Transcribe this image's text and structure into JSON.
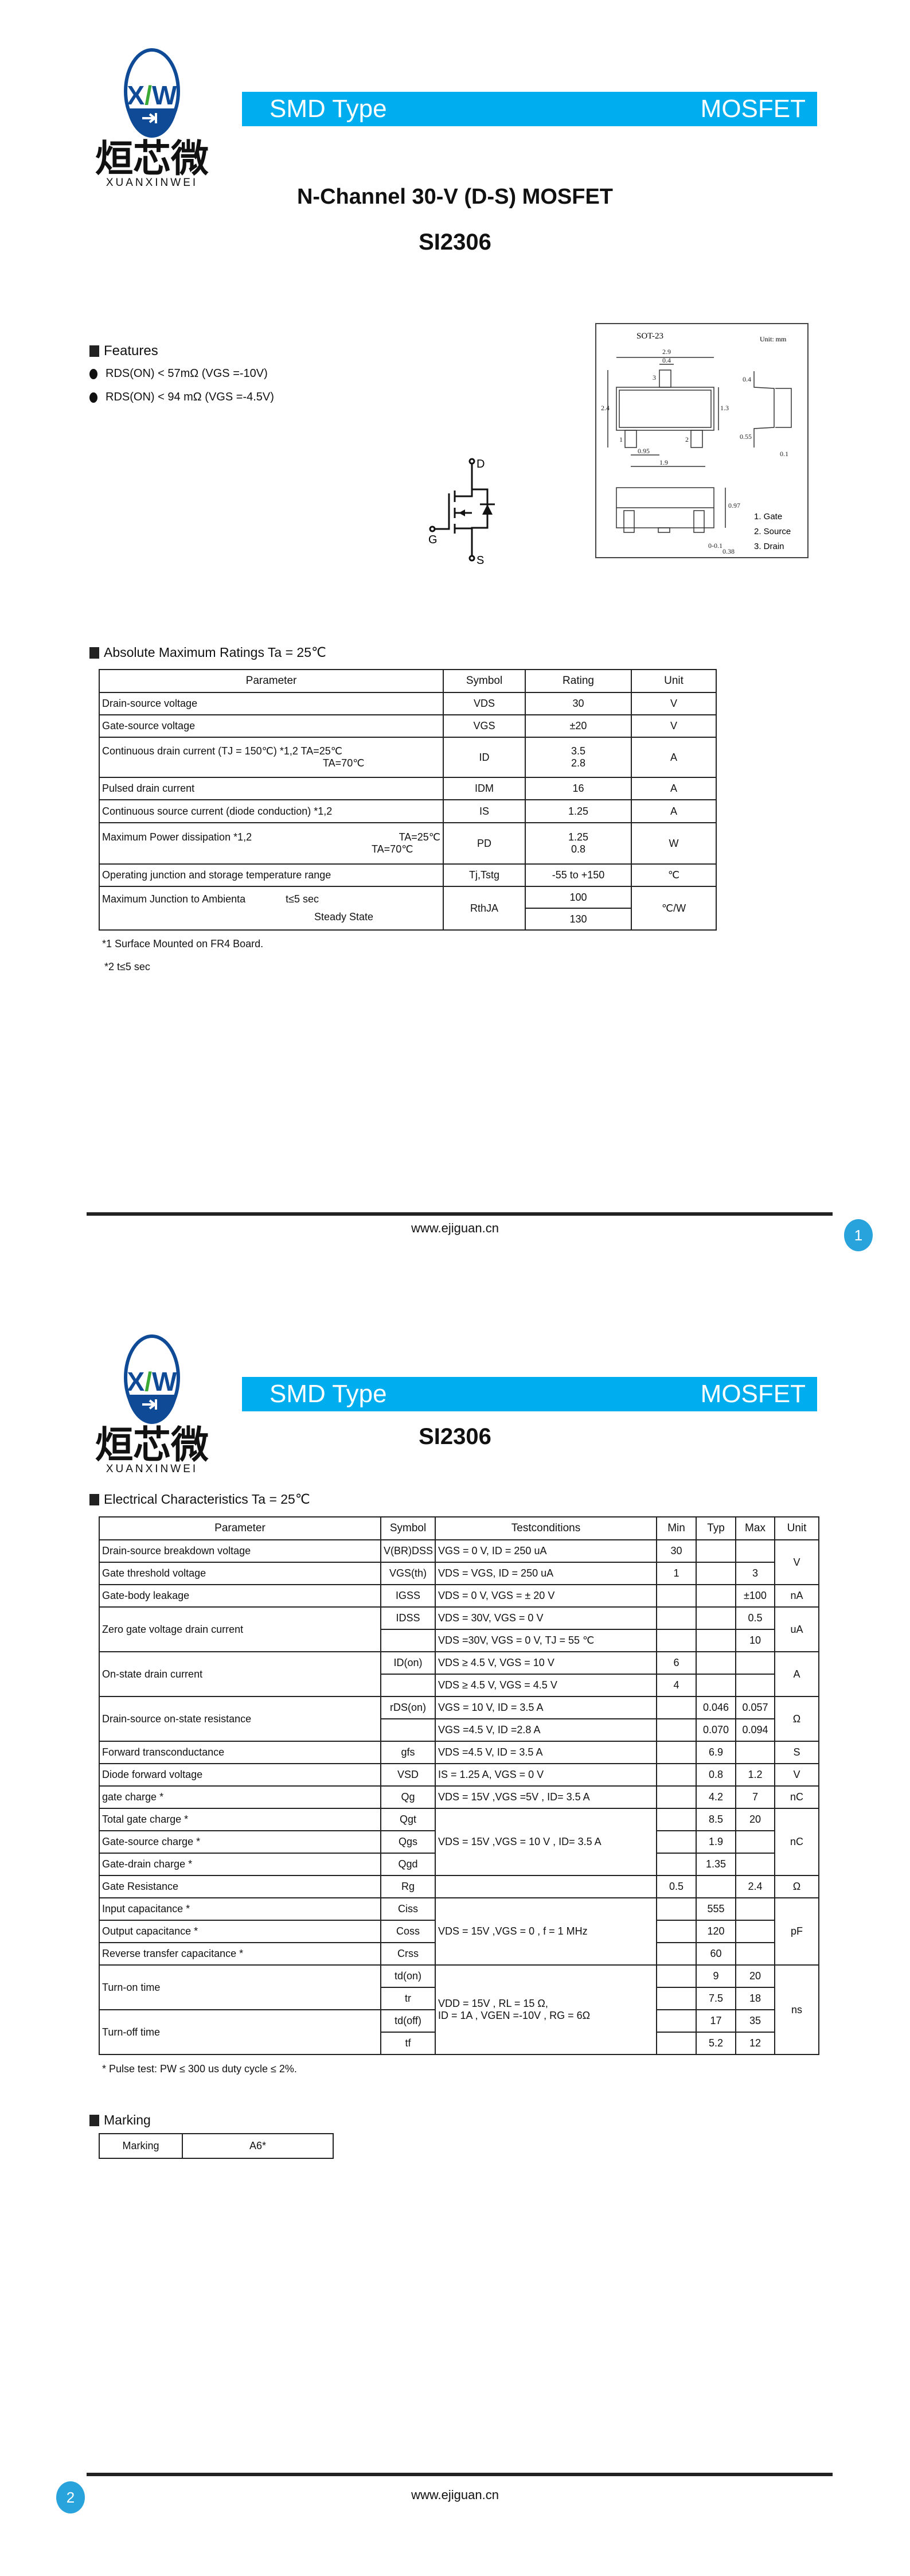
{
  "brand": {
    "logo_letters": "XW",
    "chinese": "烜芯微",
    "pinyin": "XUANXINWEI",
    "logo_blue": "#0e4a96",
    "logo_green": "#3aaa35"
  },
  "header": {
    "left": "SMD Type",
    "right": "MOSFET",
    "bar_color": "#00aeef"
  },
  "page1": {
    "title": "N-Channel 30-V (D-S) MOSFET",
    "part": "SI2306",
    "features": {
      "heading": "Features",
      "items": [
        "RDS(ON) < 57mΩ (VGS =-10V)",
        "RDS(ON) < 94 mΩ  (VGS =-4.5V)"
      ]
    },
    "symbol": {
      "drain": "D",
      "gate": "G",
      "source": "S"
    },
    "package": {
      "name": "SOT-23",
      "unit": "Unit: mm",
      "dims": [
        "2.9",
        "0.4",
        "2.4",
        "1.3",
        "0.95",
        "1.9",
        "0.4",
        "0.55",
        "0.1",
        "0.97",
        "0-0.1",
        "0.38"
      ],
      "pins": [
        "1. Gate",
        "2. Source",
        "3. Drain"
      ],
      "pin_nums": [
        "1",
        "2",
        "3"
      ]
    },
    "abs": {
      "heading": "Absolute Maximum Ratings Ta = 25℃",
      "headers": [
        "Parameter",
        "Symbol",
        "Rating",
        "Unit"
      ],
      "rows": [
        {
          "p": "Drain-source voltage",
          "s": "VDS",
          "r": "30",
          "u": "V"
        },
        {
          "p": "Gate-source voltage",
          "s": "VGS",
          "r": "±20",
          "u": "V"
        },
        {
          "p": "Continuous drain current (TJ = 150℃) *1,2  TA=25℃",
          "p2": "TA=70℃",
          "s": "ID",
          "r": "3.5",
          "r2": "2.8",
          "u": "A"
        },
        {
          "p": "Pulsed drain current",
          "s": "IDM",
          "r": "16",
          "u": "A"
        },
        {
          "p": "Continuous source current (diode conduction) *1,2",
          "s": "IS",
          "r": "1.25",
          "u": "A"
        },
        {
          "p": "Maximum Power dissipation  *1,2",
          "pa": "TA=25℃",
          "p2": "TA=70℃",
          "s": "PD",
          "r": "1.25",
          "r2": "0.8",
          "u": "W"
        },
        {
          "p": "Operating junction and storage temperature range",
          "s": "Tj,Tstg",
          "r": "-55 to +150",
          "u": "℃"
        },
        {
          "p": "Maximum Junction to Ambienta",
          "pa": "t≤5 sec",
          "p2": "Steady State",
          "s": "RthJA",
          "r": "100",
          "r2": "130",
          "u": "℃/W"
        }
      ],
      "notes": [
        "*1 Surface Mounted on FR4 Board.",
        "*2 t≤5 sec"
      ]
    },
    "footer": {
      "url": "www.ejiguan.cn",
      "page": "1"
    }
  },
  "page2": {
    "part": "SI2306",
    "elec": {
      "heading": "Electrical Characteristics Ta = 25℃",
      "headers": [
        "Parameter",
        "Symbol",
        "Testconditions",
        "Min",
        "Typ",
        "Max",
        "Unit"
      ],
      "rows": [
        {
          "p": "Drain-source breakdown voltage",
          "s": "V(BR)DSS",
          "t": "VGS = 0 V, ID = 250 uA",
          "min": "30",
          "typ": "",
          "max": "",
          "u": "V"
        },
        {
          "p": "Gate threshold voltage",
          "s": "VGS(th)",
          "t": "VDS = VGS, ID = 250 uA",
          "min": "1",
          "typ": "",
          "max": "3"
        },
        {
          "p": "Gate-body leakage",
          "s": "IGSS",
          "t": "VDS = 0 V, VGS = ±  20 V",
          "min": "",
          "typ": "",
          "max": "±100",
          "u": "nA"
        },
        {
          "p": "Zero gate voltage drain current",
          "s": "IDSS",
          "t": "VDS = 30V, VGS = 0 V",
          "min": "",
          "typ": "",
          "max": "0.5",
          "u": "uA"
        },
        {
          "t": "VDS =30V, VGS = 0 V, TJ = 55 ℃",
          "min": "",
          "typ": "",
          "max": "10"
        },
        {
          "p": "On-state drain current",
          "s": "ID(on)",
          "t": "VDS ≥ 4.5 V, VGS = 10 V",
          "min": "6",
          "typ": "",
          "max": "",
          "u": "A"
        },
        {
          "t": "VDS ≥ 4.5 V, VGS = 4.5 V",
          "min": "4",
          "typ": "",
          "max": ""
        },
        {
          "p": "Drain-source on-state resistance",
          "s": "rDS(on)",
          "t": "VGS = 10 V, ID = 3.5 A",
          "min": "",
          "typ": "0.046",
          "max": "0.057",
          "u": "Ω"
        },
        {
          "t": "VGS =4.5 V, ID =2.8 A",
          "min": "",
          "typ": "0.070",
          "max": "0.094"
        },
        {
          "p": "Forward transconductance",
          "s": "gfs",
          "t": "VDS =4.5 V, ID = 3.5 A",
          "min": "",
          "typ": "6.9",
          "max": "",
          "u": "S"
        },
        {
          "p": "Diode forward voltage",
          "s": "VSD",
          "t": "IS = 1.25 A, VGS = 0 V",
          "min": "",
          "typ": "0.8",
          "max": "1.2",
          "u": "V"
        },
        {
          "p": " gate charge  *",
          "s": "Qg",
          "t": "VDS = 15V ,VGS =5V , ID= 3.5 A",
          "min": "",
          "typ": "4.2",
          "max": "7",
          "u": "nC"
        },
        {
          "p": "Total gate charge  *",
          "s": "Qgt",
          "t": "VDS = 15V ,VGS = 10 V , ID= 3.5 A",
          "min": "",
          "typ": "8.5",
          "max": "20",
          "u": "nC"
        },
        {
          "p": "Gate-source charge *",
          "s": "Qgs",
          "min": "",
          "typ": "1.9",
          "max": ""
        },
        {
          "p": "Gate-drain charge *",
          "s": "Qgd",
          "min": "",
          "typ": "1.35",
          "max": ""
        },
        {
          "p": "Gate Resistance",
          "s": "Rg",
          "t": "",
          "min": "0.5",
          "typ": "",
          "max": "2.4",
          "u": "Ω"
        },
        {
          "p": "Input capacitance *",
          "s": "Ciss",
          "t": "VDS = 15V ,VGS = 0 , f = 1 MHz",
          "min": "",
          "typ": "555",
          "max": "",
          "u": "pF"
        },
        {
          "p": "Output capacitance *",
          "s": "Coss",
          "min": "",
          "typ": "120",
          "max": ""
        },
        {
          "p": "Reverse transfer capacitance *",
          "s": "Crss",
          "min": "",
          "typ": "60",
          "max": ""
        },
        {
          "p": "Turn-on time",
          "s": "td(on)",
          "t": "VDD = 15V , RL = 15 Ω,",
          "t2": "ID = 1A , VGEN =-10V , RG = 6Ω",
          "min": "",
          "typ": "9",
          "max": "20",
          "u": "ns"
        },
        {
          "s": "tr",
          "min": "",
          "typ": "7.5",
          "max": "18"
        },
        {
          "p": "Turn-off time",
          "s": "td(off)",
          "min": "",
          "typ": "17",
          "max": "35"
        },
        {
          "s": "tf",
          "min": "",
          "typ": "5.2",
          "max": "12"
        }
      ],
      "note": "* Pulse test: PW ≤ 300 us duty cycle  ≤ 2%."
    },
    "marking": {
      "heading": "Marking",
      "label": "Marking",
      "value": "A6*"
    },
    "footer": {
      "url": "www.ejiguan.cn",
      "page": "2"
    }
  }
}
